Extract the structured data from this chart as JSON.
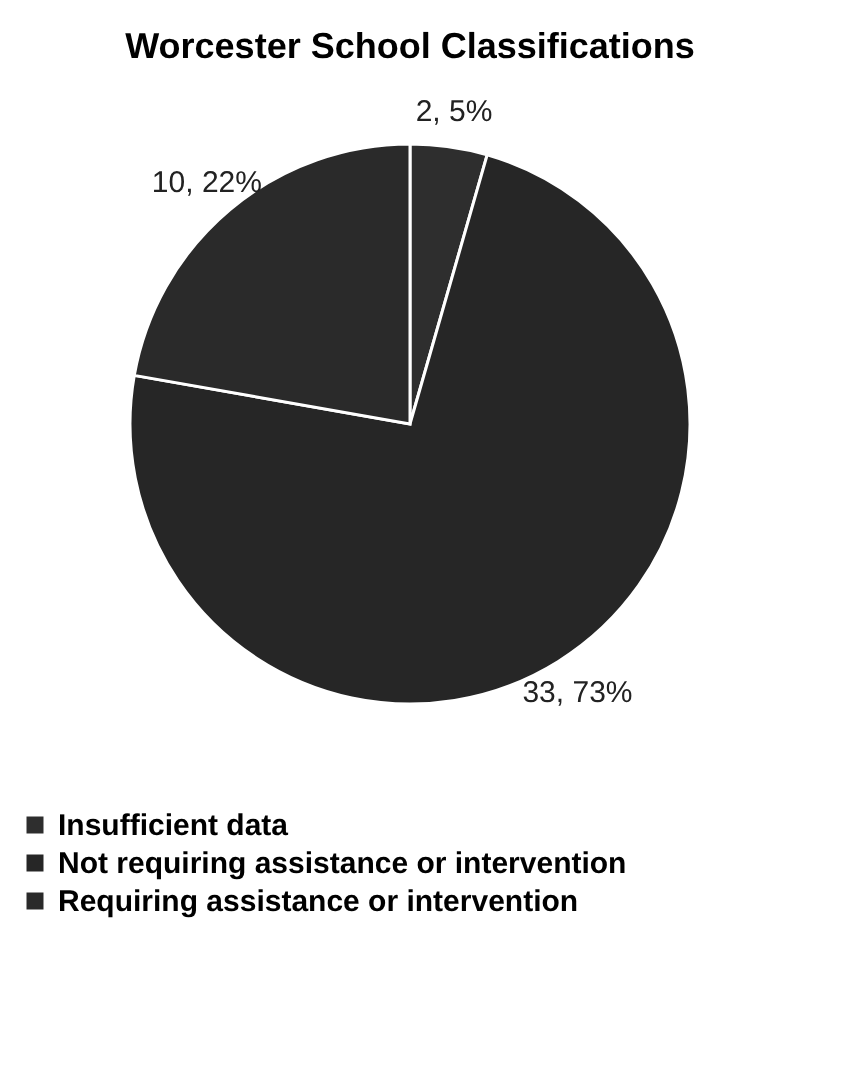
{
  "chart_data": {
    "type": "pie",
    "title": "Worcester School Classifications",
    "categories": [
      "Insufficient data",
      "Not requiring assistance or intervention",
      "Requiring assistance or intervention"
    ],
    "values": [
      2,
      33,
      10
    ],
    "colors": [
      "#2e2e2e",
      "#262626",
      "#2a2a2a"
    ],
    "value_labels": [
      "2, 5%",
      "33, 73%",
      "10, 22%"
    ],
    "legend": "bottom"
  }
}
